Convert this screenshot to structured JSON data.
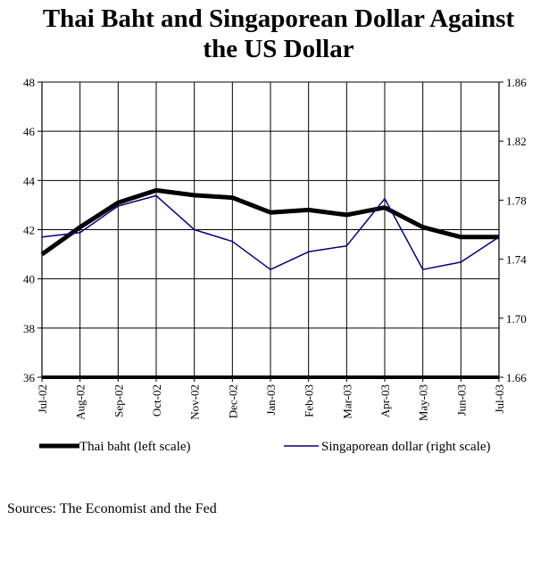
{
  "title_line1": "Thai Baht and Singaporean Dollar Against",
  "title_line2": "the US Dollar",
  "source": "Sources: The Economist and the Fed",
  "chart_data": {
    "type": "line",
    "categories": [
      "Jul-02",
      "Aug-02",
      "Sep-02",
      "Oct-02",
      "Nov-02",
      "Dec-02",
      "Jan-03",
      "Feb-03",
      "Mar-03",
      "Apr-03",
      "May-03",
      "Jun-03",
      "Jul-03"
    ],
    "left_axis": {
      "ylim": [
        36,
        48
      ],
      "ticks": [
        "36",
        "38",
        "40",
        "42",
        "44",
        "46",
        "48"
      ]
    },
    "right_axis": {
      "ylim": [
        1.66,
        1.86
      ],
      "ticks": [
        "1.66",
        "1.70",
        "1.74",
        "1.78",
        "1.82",
        "1.86"
      ]
    },
    "grid": true,
    "legend_position": "bottom",
    "series": [
      {
        "name": "Thai baht (left scale)",
        "axis": "left",
        "color": "#000000",
        "values": [
          41.0,
          42.1,
          43.1,
          43.6,
          43.4,
          43.3,
          42.7,
          42.8,
          42.6,
          42.9,
          42.1,
          41.7,
          41.7
        ]
      },
      {
        "name": "Singaporean dollar (right scale)",
        "axis": "right",
        "color": "#000080",
        "values": [
          1.755,
          1.758,
          1.776,
          1.783,
          1.76,
          1.752,
          1.733,
          1.745,
          1.749,
          1.781,
          1.733,
          1.738,
          1.755
        ]
      }
    ]
  }
}
